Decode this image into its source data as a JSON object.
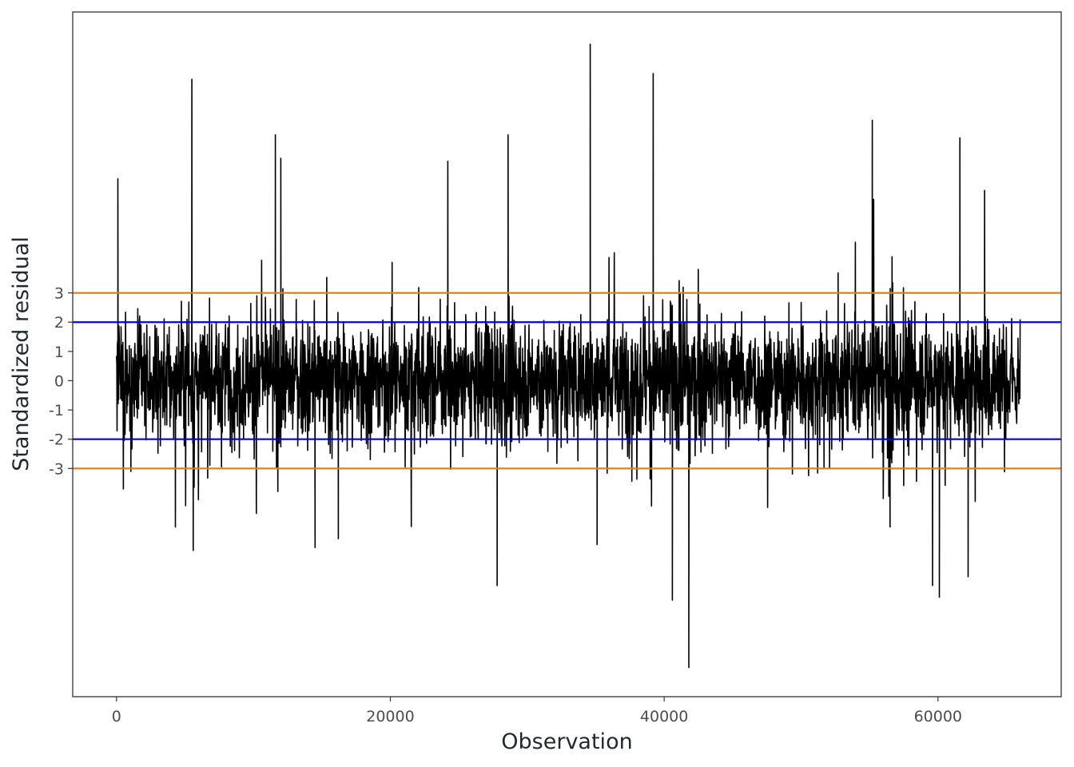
{
  "chart_data": {
    "type": "line",
    "title": "",
    "xlabel": "Observation",
    "ylabel": "Standardized residual",
    "xlim": [
      -3200,
      69000
    ],
    "ylim": [
      -10.8,
      12.6
    ],
    "x_ticks": [
      0,
      20000,
      40000,
      60000
    ],
    "x_tick_labels": [
      "0",
      "20000",
      "40000",
      "60000"
    ],
    "y_ticks": [
      3,
      2,
      1,
      0,
      -1,
      -2,
      -3
    ],
    "y_tick_labels": [
      "3",
      "2",
      "1",
      "0",
      "-1",
      "-2",
      "-3"
    ],
    "grid": false,
    "legend": "none",
    "n_observations": 66000,
    "reference_lines": [
      {
        "y": 3,
        "color": "#E87D0E"
      },
      {
        "y": 2,
        "color": "#0000EE"
      },
      {
        "y": -2,
        "color": "#0000EE"
      },
      {
        "y": -3,
        "color": "#E87D0E"
      }
    ],
    "series": [
      {
        "color": "#000000",
        "notable_points": [
          {
            "x": 100,
            "y": 6.9
          },
          {
            "x": 500,
            "y": -3.7
          },
          {
            "x": 4300,
            "y": -5.0
          },
          {
            "x": 5500,
            "y": 10.3
          },
          {
            "x": 5600,
            "y": -5.8
          },
          {
            "x": 11600,
            "y": 8.4
          },
          {
            "x": 12000,
            "y": 7.6
          },
          {
            "x": 14500,
            "y": -5.7
          },
          {
            "x": 16200,
            "y": -5.4
          },
          {
            "x": 24200,
            "y": 7.5
          },
          {
            "x": 27800,
            "y": -7.0
          },
          {
            "x": 28600,
            "y": 8.4
          },
          {
            "x": 34600,
            "y": 11.5
          },
          {
            "x": 35100,
            "y": -5.6
          },
          {
            "x": 39200,
            "y": 10.5
          },
          {
            "x": 40600,
            "y": -7.5
          },
          {
            "x": 41800,
            "y": -9.8
          },
          {
            "x": 55200,
            "y": 8.9
          },
          {
            "x": 56500,
            "y": -5.0
          },
          {
            "x": 59600,
            "y": -7.0
          },
          {
            "x": 60100,
            "y": -7.4
          },
          {
            "x": 61600,
            "y": 8.3
          },
          {
            "x": 62200,
            "y": -6.7
          },
          {
            "x": 63400,
            "y": 6.5
          }
        ]
      }
    ]
  }
}
